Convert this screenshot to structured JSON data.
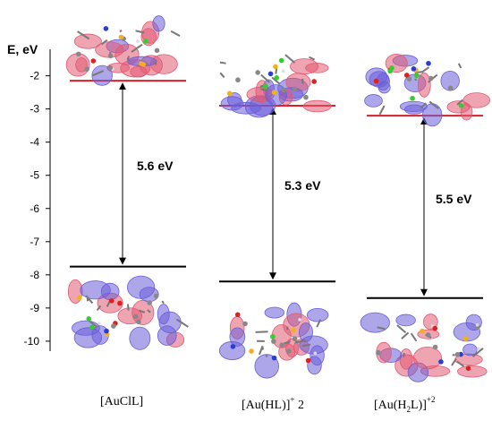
{
  "axis": {
    "title": "E, eV",
    "ticks": [
      "-2",
      "-3",
      "-4",
      "-5",
      "-6",
      "-7",
      "-8",
      "-9",
      "-10"
    ],
    "min": -10.3,
    "max": -1.2
  },
  "colors": {
    "lumo": "#d9202a",
    "homo": "#000000",
    "orbital_positive": "#6a5ed8",
    "orbital_negative": "#e25a72"
  },
  "compounds": [
    {
      "label_main": "[AuClL]",
      "label_sup": "",
      "label_suffix": "",
      "lumo_ev": -2.15,
      "homo_ev": -7.75,
      "gap_label": "5.6 eV"
    },
    {
      "label_main": "[Au(HL)]",
      "label_sup": "+",
      "label_suffix": " 2",
      "lumo_ev": -2.9,
      "homo_ev": -8.2,
      "gap_label": "5.3 eV"
    },
    {
      "label_main_pre": "[Au(H",
      "label_sub": "2",
      "label_main_post": "L)]",
      "label_sup": "+2",
      "lumo_ev": -3.2,
      "homo_ev": -8.7,
      "gap_label": "5.5 eV"
    }
  ],
  "orbital_icons": [
    "lumo-orbital-1",
    "homo-orbital-1",
    "lumo-orbital-2",
    "homo-orbital-2",
    "lumo-orbital-3",
    "homo-orbital-3"
  ]
}
